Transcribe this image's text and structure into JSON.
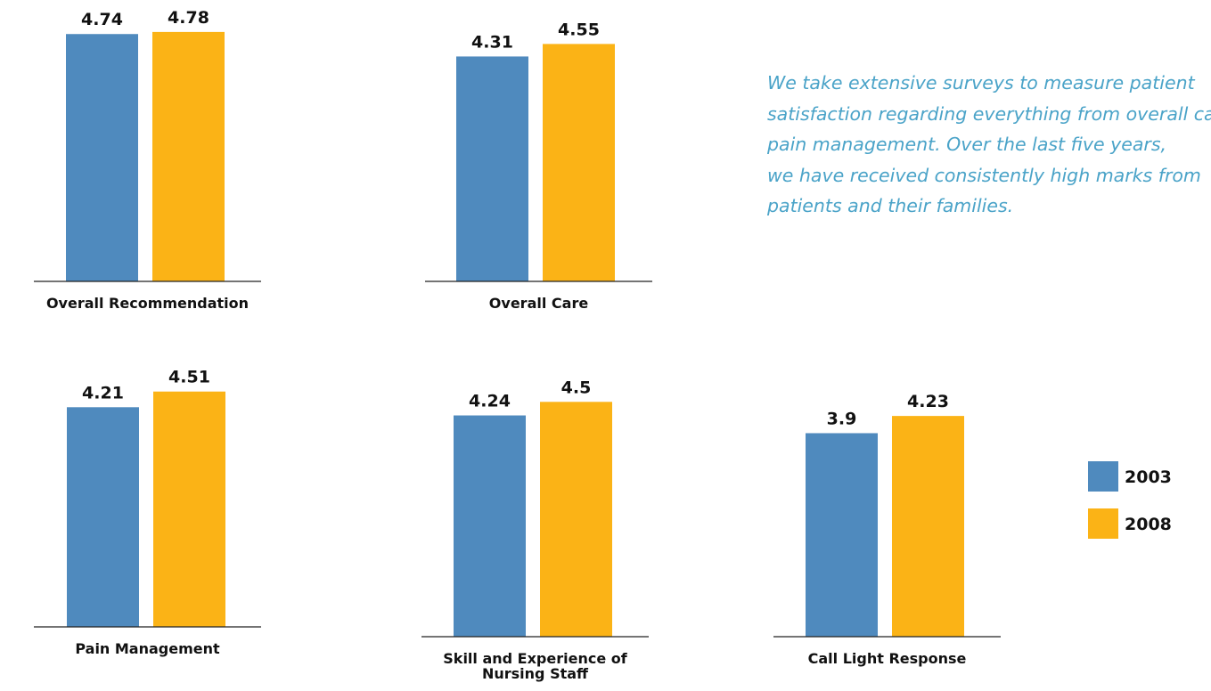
{
  "chart_data": {
    "type": "bar",
    "series": [
      {
        "name": "2003",
        "color": "#4f8abe"
      },
      {
        "name": "2008",
        "color": "#fbb316"
      }
    ],
    "panels": [
      {
        "category": "Overall Recommendation",
        "values": [
          4.74,
          4.78
        ]
      },
      {
        "category": "Overall Care",
        "values": [
          4.31,
          4.55
        ]
      },
      {
        "category": "Pain Management",
        "values": [
          4.21,
          4.51
        ]
      },
      {
        "category": "Skill and Experience of Nursing Staff",
        "label_lines": [
          "Skill and Experience of",
          "Nursing Staff"
        ],
        "values": [
          4.24,
          4.5
        ]
      },
      {
        "category": "Call Light Response",
        "values": [
          3.9,
          4.23
        ]
      }
    ],
    "value_labels": [
      "4.74",
      "4.78",
      "4.31",
      "4.55",
      "4.21",
      "4.51",
      "4.24",
      "4.5",
      "3.9",
      "4.23"
    ],
    "legend_placement": "bottom-right",
    "grid": false
  },
  "description_lines": [
    "We take extensive surveys to measure patient",
    "satisfaction regarding everything from overall care",
    "pain management. Over the last five years,",
    "we have received consistently high marks from",
    "patients and their families."
  ]
}
